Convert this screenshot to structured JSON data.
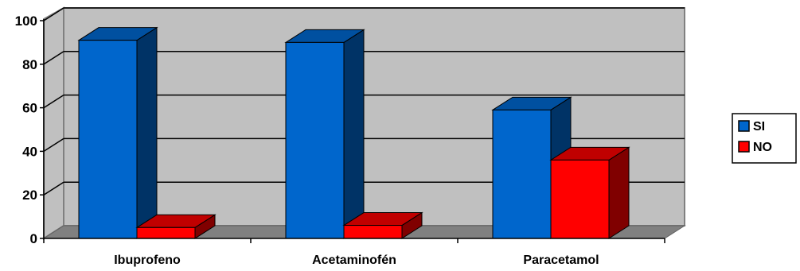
{
  "chart_data": {
    "type": "bar",
    "categories": [
      "Ibuprofeno",
      "Acetaminofén",
      "Paracetamol"
    ],
    "series": [
      {
        "name": "SI",
        "values": [
          91,
          90,
          59
        ],
        "color": "#0066cc",
        "side_color": "#003366",
        "top_color": "#0050a0"
      },
      {
        "name": "NO",
        "values": [
          5,
          6,
          36
        ],
        "color": "#ff0000",
        "side_color": "#800000",
        "top_color": "#c00000"
      }
    ],
    "ylim": [
      0,
      100
    ],
    "yticks": [
      0,
      20,
      40,
      60,
      80,
      100
    ],
    "grid": true,
    "legend": "right",
    "wall_color": "#c0c0c0",
    "floor_color": "#808080"
  }
}
